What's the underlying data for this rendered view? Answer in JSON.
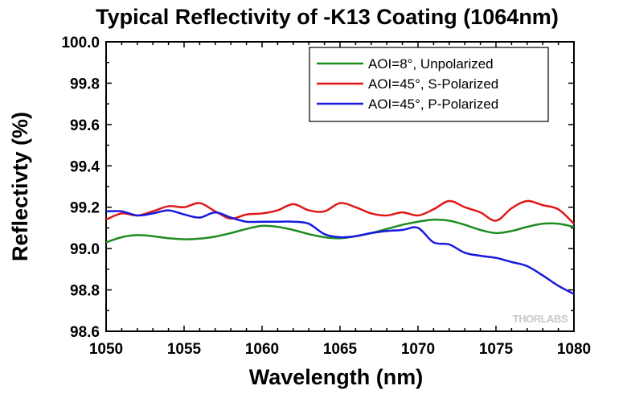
{
  "chart_data": {
    "type": "line",
    "title": "Typical Reflectivity of -K13 Coating (1064nm)",
    "xlabel": "Wavelength (nm)",
    "ylabel": "Reflectivty (%)",
    "xlim": [
      1050,
      1080
    ],
    "ylim": [
      98.6,
      100.0
    ],
    "xticks": [
      "1050",
      "1055",
      "1060",
      "1065",
      "1070",
      "1075",
      "1080"
    ],
    "yticks": [
      "98.6",
      "98.8",
      "99.0",
      "99.2",
      "99.4",
      "99.6",
      "99.8",
      "100.0"
    ],
    "legend_position": "top-right",
    "grid": false,
    "series": [
      {
        "name": "AOI=8°, Unpolarized",
        "color": "#1f8c1f",
        "x": [
          1050,
          1051,
          1052,
          1053,
          1054,
          1055,
          1056,
          1057,
          1058,
          1059,
          1060,
          1061,
          1062,
          1063,
          1064,
          1065,
          1066,
          1067,
          1068,
          1069,
          1070,
          1071,
          1072,
          1073,
          1074,
          1075,
          1076,
          1077,
          1078,
          1079,
          1080
        ],
        "y": [
          99.03,
          99.055,
          99.065,
          99.06,
          99.05,
          99.045,
          99.048,
          99.058,
          99.075,
          99.095,
          99.11,
          99.105,
          99.09,
          99.07,
          99.055,
          99.05,
          99.06,
          99.075,
          99.095,
          99.115,
          99.13,
          99.14,
          99.135,
          99.115,
          99.09,
          99.075,
          99.085,
          99.105,
          99.12,
          99.12,
          99.105
        ]
      },
      {
        "name": "AOI=45°, S-Polarized",
        "color": "#e01818",
        "x": [
          1050,
          1051,
          1052,
          1053,
          1054,
          1055,
          1056,
          1057,
          1058,
          1059,
          1060,
          1061,
          1062,
          1063,
          1064,
          1065,
          1066,
          1067,
          1068,
          1069,
          1070,
          1071,
          1072,
          1073,
          1074,
          1075,
          1076,
          1077,
          1078,
          1079,
          1080
        ],
        "y": [
          99.14,
          99.17,
          99.16,
          99.18,
          99.205,
          99.2,
          99.22,
          99.18,
          99.145,
          99.165,
          99.17,
          99.185,
          99.215,
          99.185,
          99.18,
          99.22,
          99.2,
          99.17,
          99.16,
          99.175,
          99.16,
          99.19,
          99.23,
          99.2,
          99.175,
          99.135,
          99.195,
          99.23,
          99.21,
          99.19,
          99.12
        ]
      },
      {
        "name": "AOI=45°, P-Polarized",
        "color": "#1818e0",
        "x": [
          1050,
          1051,
          1052,
          1053,
          1054,
          1055,
          1056,
          1057,
          1058,
          1059,
          1060,
          1061,
          1062,
          1063,
          1064,
          1065,
          1066,
          1067,
          1068,
          1069,
          1070,
          1071,
          1072,
          1073,
          1074,
          1075,
          1076,
          1077,
          1078,
          1079,
          1080
        ],
        "y": [
          99.18,
          99.18,
          99.16,
          99.17,
          99.185,
          99.165,
          99.15,
          99.175,
          99.15,
          99.13,
          99.13,
          99.13,
          99.13,
          99.12,
          99.07,
          99.055,
          99.06,
          99.075,
          99.085,
          99.09,
          99.1,
          99.03,
          99.02,
          98.98,
          98.965,
          98.955,
          98.935,
          98.915,
          98.87,
          98.82,
          98.78
        ]
      }
    ]
  },
  "watermark": "THORLABS"
}
